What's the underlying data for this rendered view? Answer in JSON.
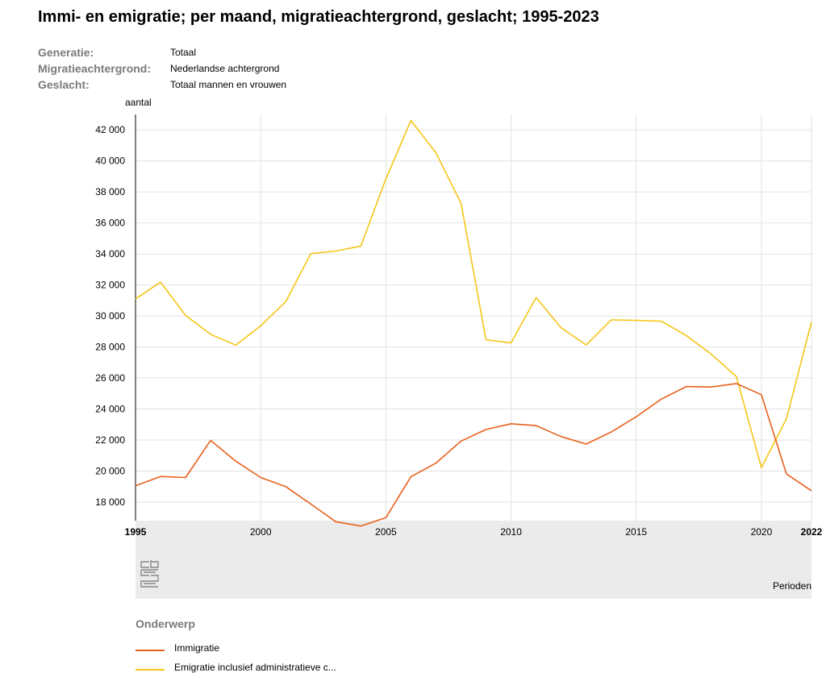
{
  "title": "Immi- en emigratie; per maand, migratieachtergrond, geslacht; 1995-2023",
  "meta": [
    {
      "label": "Generatie:",
      "value": "Totaal"
    },
    {
      "label": "Migratieachtergrond:",
      "value": "Nederlandse achtergrond"
    },
    {
      "label": "Geslacht:",
      "value": "Totaal mannen en vrouwen"
    }
  ],
  "legend": {
    "title": "Onderwerp",
    "items": [
      {
        "label": "Immigratie",
        "color": "#e8601c"
      },
      {
        "label": "Emigratie inclusief administratieve c...",
        "color": "#f5c518"
      }
    ]
  },
  "logo_icon": "cbs-logo-icon",
  "chart_data": {
    "type": "line",
    "title": "",
    "ylabel": "aantal",
    "xlabel": "Perioden",
    "x": [
      1995,
      1996,
      1997,
      1998,
      1999,
      2000,
      2001,
      2002,
      2003,
      2004,
      2005,
      2006,
      2007,
      2008,
      2009,
      2010,
      2011,
      2012,
      2013,
      2014,
      2015,
      2016,
      2017,
      2018,
      2019,
      2020,
      2021,
      2022
    ],
    "x_ticks": [
      {
        "label": "1995",
        "value": 1995,
        "bold": true
      },
      {
        "label": "2000",
        "value": 2000,
        "bold": false
      },
      {
        "label": "2005",
        "value": 2005,
        "bold": false
      },
      {
        "label": "2010",
        "value": 2010,
        "bold": false
      },
      {
        "label": "2015",
        "value": 2015,
        "bold": false
      },
      {
        "label": "2020",
        "value": 2020,
        "bold": false
      },
      {
        "label": "2022",
        "value": 2022,
        "bold": true
      }
    ],
    "y_ticks": [
      {
        "label": "18 000",
        "value": 18000
      },
      {
        "label": "20 000",
        "value": 20000
      },
      {
        "label": "22 000",
        "value": 22000
      },
      {
        "label": "24 000",
        "value": 24000
      },
      {
        "label": "26 000",
        "value": 26000
      },
      {
        "label": "28 000",
        "value": 28000
      },
      {
        "label": "30 000",
        "value": 30000
      },
      {
        "label": "32 000",
        "value": 32000
      },
      {
        "label": "34 000",
        "value": 34000
      },
      {
        "label": "36 000",
        "value": 36000
      },
      {
        "label": "38 000",
        "value": 38000
      },
      {
        "label": "40 000",
        "value": 40000
      },
      {
        "label": "42 000",
        "value": 42000
      }
    ],
    "xlim": [
      1995,
      2022
    ],
    "ylim": [
      16800,
      43000
    ],
    "grid": true,
    "legend_position": "bottom-left",
    "series": [
      {
        "name": "Immigratie",
        "color": "#e8601c",
        "values": [
          19050,
          19650,
          19580,
          21980,
          20640,
          19580,
          19000,
          17870,
          16730,
          16450,
          16990,
          19630,
          20510,
          21930,
          22680,
          23050,
          22930,
          22220,
          21740,
          22520,
          23500,
          24640,
          25450,
          25420,
          25640,
          24920,
          19810,
          18730
        ]
      },
      {
        "name": "Emigratie inclusief administratieve c...",
        "color": "#f5c518",
        "values": [
          31100,
          32180,
          30040,
          28820,
          28120,
          29370,
          30920,
          34020,
          34190,
          34510,
          38840,
          42610,
          40530,
          37280,
          28470,
          28270,
          31190,
          29240,
          28130,
          29750,
          29720,
          29660,
          28740,
          27530,
          26100,
          20220,
          23370,
          29620
        ]
      }
    ]
  }
}
